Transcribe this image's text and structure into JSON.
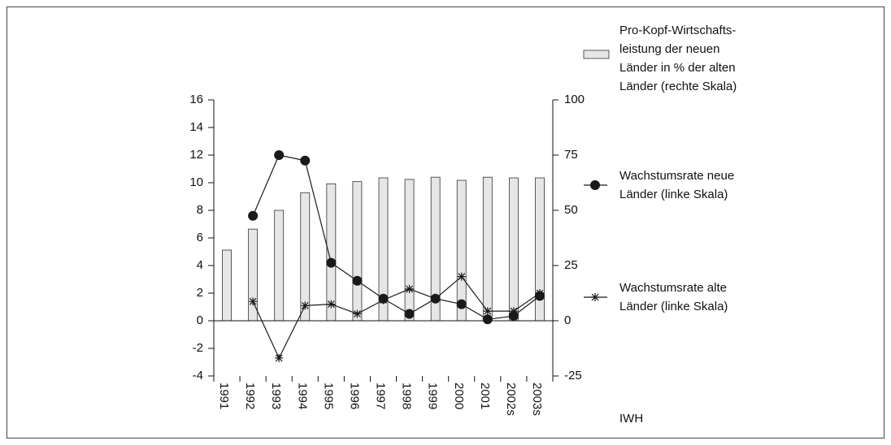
{
  "chart_data": {
    "type": "bar",
    "categories": [
      "1991",
      "1992",
      "1993",
      "1994",
      "1995",
      "1996",
      "1997",
      "1998",
      "1999",
      "2000",
      "2001",
      "2002s",
      "2003s"
    ],
    "series": [
      {
        "name": "Pro-Kopf-Wirtschafts-\nleistung der neuen\nLänder in % der alten\nLänder (rechte Skala)",
        "type": "bar",
        "axis": "y2",
        "color": "#e6e6e6",
        "values": [
          32,
          41.5,
          50,
          58,
          62,
          63,
          64.7,
          64,
          65,
          63.6,
          65,
          64.7,
          64.7
        ]
      },
      {
        "name": "Wachstumsrate neue\nLänder (linke Skala)",
        "type": "line",
        "marker": "circle",
        "color": "#1a1a1a",
        "values": [
          null,
          7.6,
          12,
          11.6,
          4.2,
          2.9,
          1.6,
          0.5,
          1.6,
          1.2,
          0.1,
          0.35,
          1.8
        ]
      },
      {
        "name": "Wachstumsrate alte\nLänder (linke Skala)",
        "type": "line",
        "marker": "star",
        "color": "#1a1a1a",
        "values": [
          null,
          1.4,
          -2.7,
          1.1,
          1.2,
          0.5,
          1.5,
          2.3,
          1.6,
          3.2,
          0.7,
          0.7,
          2.0
        ]
      }
    ],
    "ylim": [
      -4,
      16
    ],
    "yticks": [
      -4,
      -2,
      0,
      2,
      4,
      6,
      8,
      10,
      12,
      14,
      16
    ],
    "y2lim": [
      -25,
      100
    ],
    "y2ticks": [
      -25,
      0,
      25,
      50,
      75,
      100
    ],
    "source": "IWH"
  }
}
